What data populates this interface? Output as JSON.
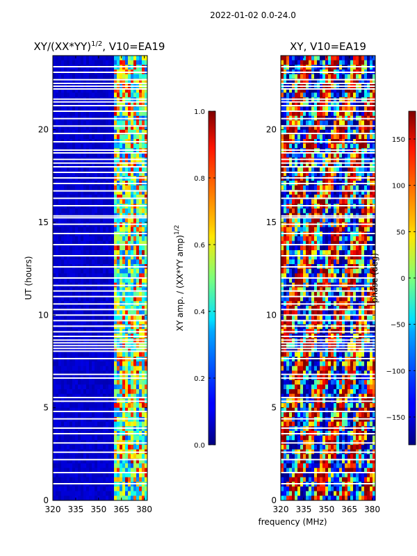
{
  "figure": {
    "suptitle": "2022-01-02 0.0-24.0",
    "shared_xlabel": "frequency (MHz)"
  },
  "chart_data": [
    {
      "type": "heatmap",
      "title": "XY/(XX*YY)^{1/2}, V10=EA19",
      "title_main": "XY/(XX*YY)",
      "title_exp": "1/2",
      "title_tail": ", V10=EA19",
      "xlabel": "frequency (MHz)",
      "ylabel": "UT (hours)",
      "xlim": [
        320,
        382
      ],
      "ylim": [
        0,
        24
      ],
      "xticks": [
        320,
        335,
        350,
        365,
        380
      ],
      "yticks": [
        0,
        5,
        10,
        15,
        20
      ],
      "colorbar": {
        "label": "XY amp. / (XX*YY amp)^{1/2}",
        "label_main": "XY amp. / (XX*YY amp)",
        "label_exp": "1/2",
        "range": [
          0.0,
          1.0
        ],
        "ticks": [
          "0.0",
          "0.2",
          "0.4",
          "0.6",
          "0.8",
          "1.0"
        ],
        "tick_values": [
          0.0,
          0.2,
          0.4,
          0.6,
          0.8,
          1.0
        ],
        "colormap": "jet"
      },
      "description_values": {
        "low_band_mhz": [
          320,
          360
        ],
        "low_band_level": 0.05,
        "high_band_mhz": [
          360,
          382
        ],
        "high_band_level": 0.45
      }
    },
    {
      "type": "heatmap",
      "title": "XY, V10=EA19",
      "xlabel": "frequency (MHz)",
      "ylabel": "",
      "xlim": [
        320,
        382
      ],
      "ylim": [
        0,
        24
      ],
      "xticks": [
        320,
        335,
        350,
        365,
        380
      ],
      "yticks": [
        0,
        5,
        10,
        15,
        20
      ],
      "colorbar": {
        "label": "phase (deg)",
        "range": [
          -180,
          180
        ],
        "ticks": [
          "150",
          "100",
          "50",
          "0",
          "−50",
          "−100",
          "−150"
        ],
        "tick_values": [
          150,
          100,
          50,
          0,
          -50,
          -100,
          -150
        ],
        "colormap": "jet"
      }
    }
  ],
  "flagged_ut_hours": [
    0.9,
    1.5,
    2.2,
    2.6,
    3.1,
    3.6,
    3.9,
    4.4,
    4.8,
    5.35,
    5.55,
    6.6,
    6.8,
    7.65,
    8.05,
    8.2,
    8.35,
    8.5,
    8.65,
    8.85,
    9.1,
    9.4,
    9.7,
    10.0,
    10.3,
    10.6,
    11.0,
    11.3,
    11.6,
    12.0,
    12.6,
    13.2,
    13.8,
    14.4,
    14.9,
    15.25,
    15.35,
    15.9,
    16.3,
    16.7,
    17.1,
    17.4,
    17.7,
    18.0,
    18.2,
    18.4,
    18.75,
    18.9,
    19.35,
    19.8,
    20.2,
    20.6,
    21.0,
    21.3,
    21.5,
    21.65,
    22.2,
    22.35,
    22.5,
    22.7,
    23.1,
    23.4
  ]
}
